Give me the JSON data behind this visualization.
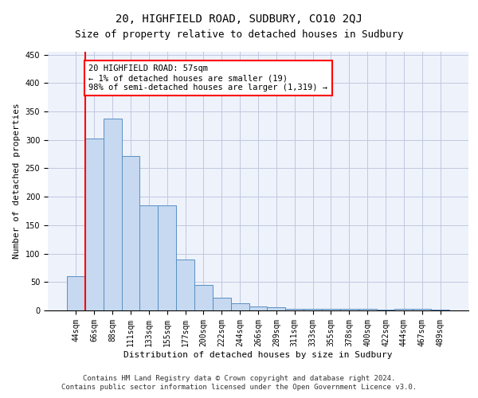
{
  "title": "20, HIGHFIELD ROAD, SUDBURY, CO10 2QJ",
  "subtitle": "Size of property relative to detached houses in Sudbury",
  "xlabel": "Distribution of detached houses by size in Sudbury",
  "ylabel": "Number of detached properties",
  "categories": [
    "44sqm",
    "66sqm",
    "88sqm",
    "111sqm",
    "133sqm",
    "155sqm",
    "177sqm",
    "200sqm",
    "222sqm",
    "244sqm",
    "266sqm",
    "289sqm",
    "311sqm",
    "333sqm",
    "355sqm",
    "378sqm",
    "400sqm",
    "422sqm",
    "444sqm",
    "467sqm",
    "489sqm"
  ],
  "bar_heights": [
    60,
    303,
    337,
    272,
    185,
    185,
    90,
    45,
    22,
    12,
    7,
    5,
    3,
    3,
    3,
    3,
    3,
    2,
    3,
    3,
    2
  ],
  "bar_color": "#c6d9f0",
  "bar_edge_color": "#5a8fc3",
  "grid_color": "#c0c8e0",
  "background_color": "#eef2fb",
  "annotation_line1": "20 HIGHFIELD ROAD: 57sqm",
  "annotation_line2": "← 1% of detached houses are smaller (19)",
  "annotation_line3": "98% of semi-detached houses are larger (1,319) →",
  "annotation_box_color": "white",
  "annotation_box_edge_color": "red",
  "marker_line_color": "red",
  "ylim": [
    0,
    455
  ],
  "yticks": [
    0,
    50,
    100,
    150,
    200,
    250,
    300,
    350,
    400,
    450
  ],
  "footer_line1": "Contains HM Land Registry data © Crown copyright and database right 2024.",
  "footer_line2": "Contains public sector information licensed under the Open Government Licence v3.0.",
  "title_fontsize": 10,
  "subtitle_fontsize": 9,
  "xlabel_fontsize": 8,
  "ylabel_fontsize": 8,
  "tick_fontsize": 7,
  "annot_fontsize": 7.5,
  "footer_fontsize": 6.5
}
